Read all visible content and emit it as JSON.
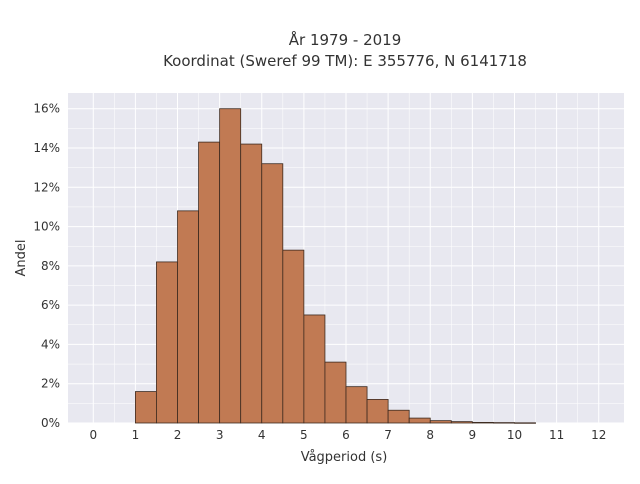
{
  "chart_data": {
    "type": "bar",
    "title": "År 1979 - 2019",
    "subtitle": "Koordinat (Sweref 99 TM): E 355776, N 6141718",
    "xlabel": "Vågperiod (s)",
    "ylabel": "Andel",
    "bin_width": 0.5,
    "bins": [
      1.0,
      1.5,
      2.0,
      2.5,
      3.0,
      3.5,
      4.0,
      4.5,
      5.0,
      5.5,
      6.0,
      6.5,
      7.0,
      7.5,
      8.0,
      8.5,
      9.0,
      9.5,
      10.0
    ],
    "values": [
      1.6,
      8.2,
      10.8,
      14.3,
      16.0,
      14.2,
      13.2,
      8.8,
      5.5,
      3.1,
      1.85,
      1.2,
      0.65,
      0.25,
      0.12,
      0.07,
      0.03,
      0.02,
      0.01
    ],
    "xlim": [
      -0.6,
      12.6
    ],
    "ylim": [
      0,
      16.8
    ],
    "x_ticks": [
      "0",
      "1",
      "2",
      "3",
      "4",
      "5",
      "6",
      "7",
      "8",
      "9",
      "10",
      "11",
      "12"
    ],
    "y_ticks": [
      "0%",
      "2%",
      "4%",
      "6%",
      "8%",
      "10%",
      "12%",
      "14%",
      "16%"
    ],
    "y_tick_values": [
      0,
      2,
      4,
      6,
      8,
      10,
      12,
      14,
      16
    ],
    "grid": true,
    "colors": {
      "bar_fill": "#c17a53",
      "bar_stroke": "#3d2a1f",
      "plot_background": "#e8e8f0",
      "grid": "#ffffff"
    }
  }
}
